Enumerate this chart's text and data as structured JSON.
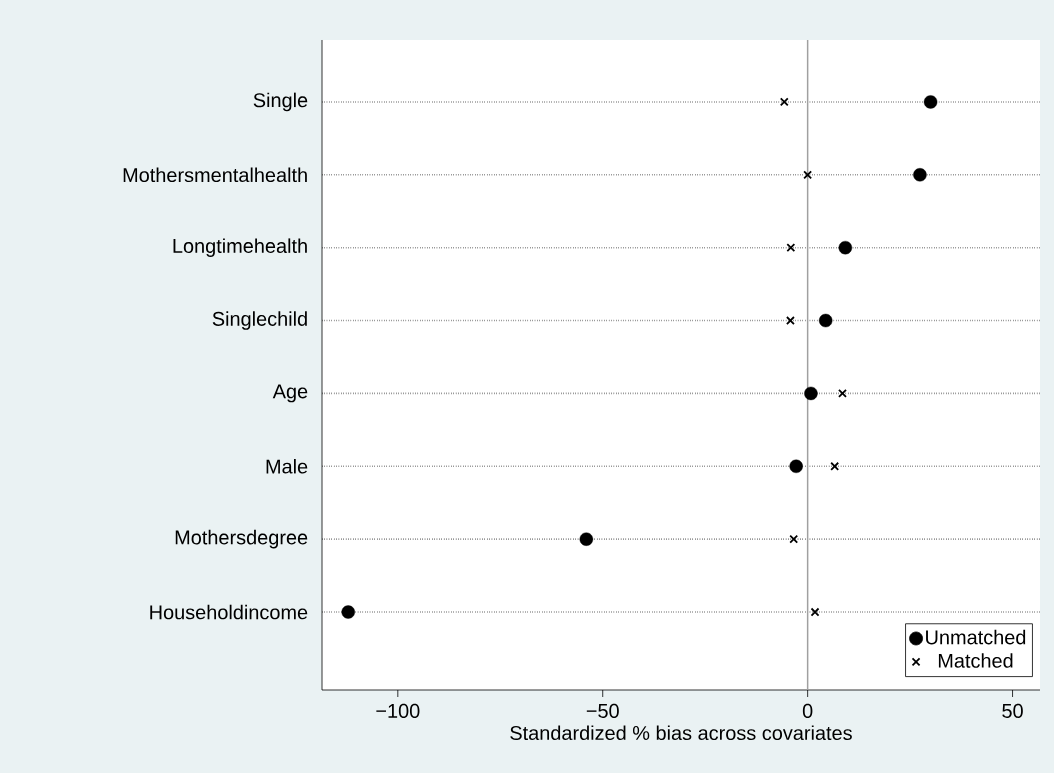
{
  "chart_data": {
    "type": "scatter",
    "orientation": "horizontal",
    "xlabel": "Standardized % bias across covariates",
    "categories": [
      "Single",
      "Mothersmentalhealth",
      "Longtimehealth",
      "Singlechild",
      "Age",
      "Male",
      "Mothersdegree",
      "Householdincome"
    ],
    "series": [
      {
        "name": "Unmatched",
        "color": "#000000",
        "marker": "circle",
        "values": [
          30.0,
          27.4,
          9.2,
          4.4,
          0.8,
          -2.8,
          -54.0,
          -112.1
        ]
      },
      {
        "name": "Matched",
        "color": "#000000",
        "marker": "cross",
        "values": [
          -5.7,
          0.0,
          -4.1,
          -4.2,
          8.5,
          6.6,
          -3.4,
          1.8
        ]
      }
    ],
    "xlim": [
      -118.5,
      56.7
    ],
    "xticks": [
      {
        "value": -100,
        "label": "−100"
      },
      {
        "value": -50,
        "label": "−50"
      },
      0,
      50
    ],
    "ref_lines": [
      {
        "axis": "x",
        "value": 0,
        "color": "#a0a0a0"
      }
    ],
    "grid": "y",
    "legend": "bottom right"
  }
}
